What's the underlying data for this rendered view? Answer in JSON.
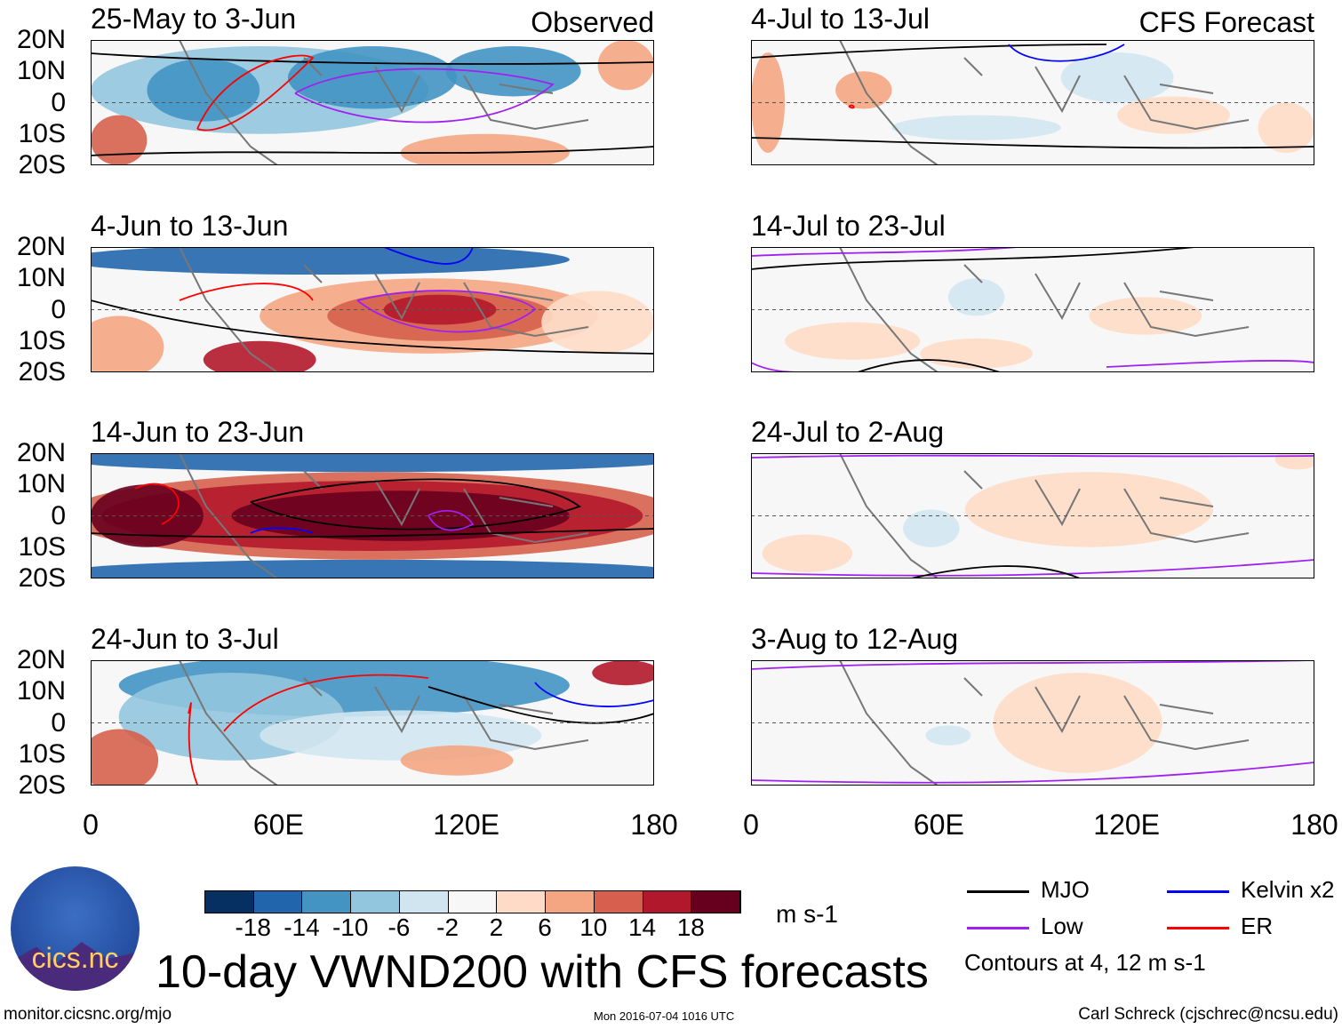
{
  "panels": [
    {
      "title": "25-May to 3-Jun",
      "tag": "Observed"
    },
    {
      "title": "4-Jun to 13-Jun"
    },
    {
      "title": "14-Jun to 23-Jun"
    },
    {
      "title": "24-Jun to 3-Jul"
    },
    {
      "title": "4-Jul to 13-Jul",
      "tag": "CFS Forecast"
    },
    {
      "title": "14-Jul to 23-Jul"
    },
    {
      "title": "24-Jul to 2-Aug"
    },
    {
      "title": "3-Aug to 12-Aug"
    }
  ],
  "chart_data": {
    "type": "heatmap",
    "title": "10-day VWND200 with CFS forecasts",
    "y_ticks": [
      "20N",
      "10N",
      "0",
      "10S",
      "20S"
    ],
    "x_ticks": [
      "0",
      "60E",
      "120E",
      "180"
    ],
    "xlim": [
      0,
      180
    ],
    "ylim": [
      -20,
      20
    ],
    "colorbar": {
      "ticks": [
        "-18",
        "-14",
        "-10",
        "-6",
        "-2",
        "2",
        "6",
        "10",
        "14",
        "18"
      ],
      "colors": [
        "#053061",
        "#2166ac",
        "#4393c3",
        "#92c5de",
        "#d1e5f0",
        "#f7f7f7",
        "#fddbc7",
        "#f4a582",
        "#d6604d",
        "#b2182b",
        "#67001f"
      ],
      "units": "m s-1"
    },
    "legend": [
      {
        "label": "MJO",
        "color": "#000000"
      },
      {
        "label": "Kelvin x2",
        "color": "#0000ff"
      },
      {
        "label": "Low",
        "color": "#a020f0"
      },
      {
        "label": "ER",
        "color": "#ff0000"
      }
    ],
    "contour_note": "Contours at 4, 12 m s-1"
  },
  "footer": {
    "left": "monitor.cicsnc.org/mjo",
    "center": "Mon 2016-07-04 1016 UTC",
    "right": "Carl Schreck (cjschrec@ncsu.edu)",
    "logo_text": "cics.nc"
  }
}
